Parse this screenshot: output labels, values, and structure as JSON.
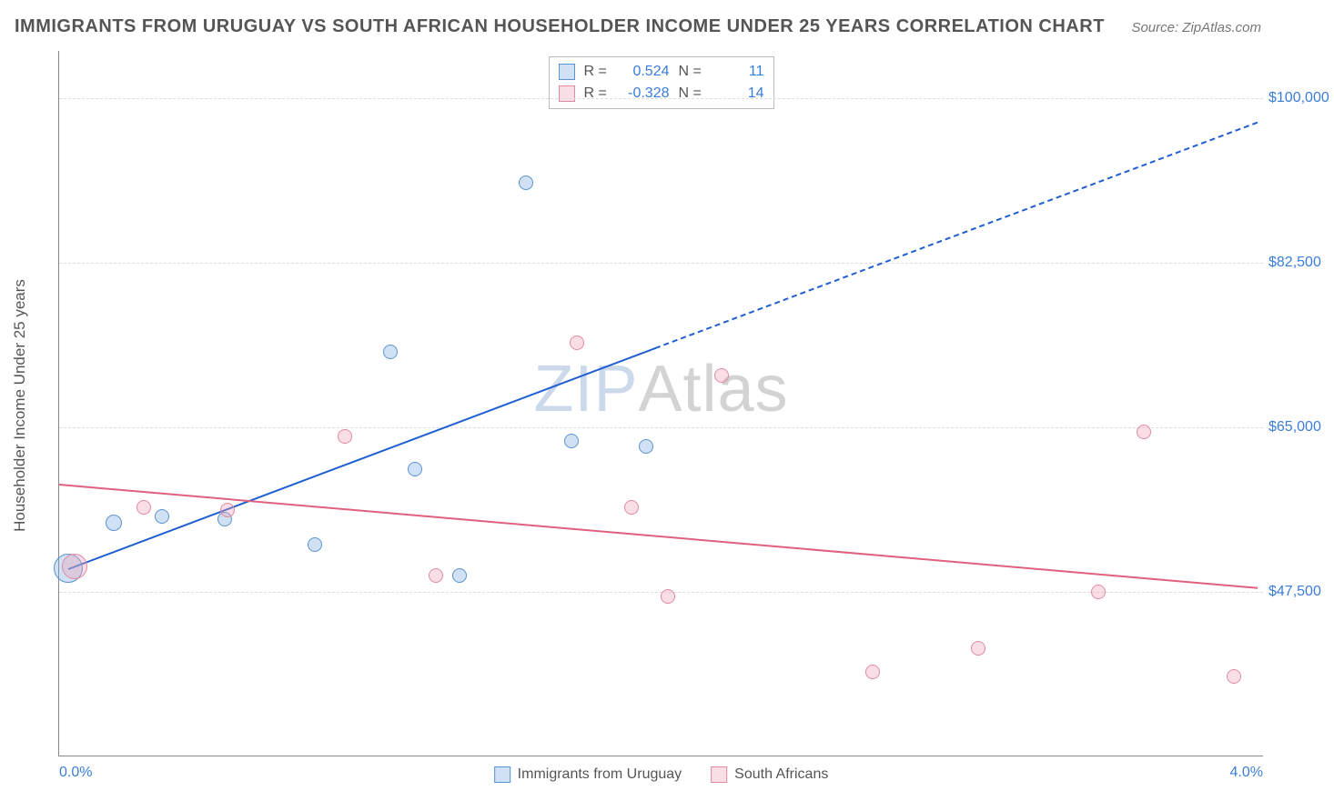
{
  "title": "IMMIGRANTS FROM URUGUAY VS SOUTH AFRICAN HOUSEHOLDER INCOME UNDER 25 YEARS CORRELATION CHART",
  "source_label": "Source: ZipAtlas.com",
  "y_axis_title": "Householder Income Under 25 years",
  "watermark": {
    "part1": "ZIP",
    "part2": "Atlas"
  },
  "chart": {
    "type": "scatter",
    "background_color": "#ffffff",
    "grid_color": "#dddddd",
    "axis_color": "#888888",
    "xlim": [
      0.0,
      4.0
    ],
    "ylim": [
      30000,
      105000
    ],
    "x_ticks": [
      {
        "value": 0.0,
        "label": "0.0%",
        "align": "left"
      },
      {
        "value": 4.0,
        "label": "4.0%",
        "align": "right"
      }
    ],
    "y_ticks": [
      {
        "value": 47500,
        "label": "$47,500"
      },
      {
        "value": 65000,
        "label": "$65,000"
      },
      {
        "value": 82500,
        "label": "$82,500"
      },
      {
        "value": 100000,
        "label": "$100,000"
      }
    ],
    "series": [
      {
        "name": "Immigrants from Uruguay",
        "fill_color": "rgba(120,170,225,0.35)",
        "stroke_color": "#5a93cf",
        "line_color": "#1f5fd0",
        "R": "0.524",
        "N": "11",
        "points": [
          {
            "x": 0.03,
            "y": 50000,
            "r": 16
          },
          {
            "x": 0.18,
            "y": 54800,
            "r": 9
          },
          {
            "x": 0.34,
            "y": 55500,
            "r": 8
          },
          {
            "x": 0.55,
            "y": 55200,
            "r": 8
          },
          {
            "x": 0.85,
            "y": 52500,
            "r": 8
          },
          {
            "x": 1.1,
            "y": 73000,
            "r": 8
          },
          {
            "x": 1.18,
            "y": 60500,
            "r": 8
          },
          {
            "x": 1.33,
            "y": 49200,
            "r": 8
          },
          {
            "x": 1.55,
            "y": 91000,
            "r": 8
          },
          {
            "x": 1.7,
            "y": 63500,
            "r": 8
          },
          {
            "x": 1.95,
            "y": 63000,
            "r": 8
          }
        ],
        "trend": {
          "solid": {
            "x1": 0.03,
            "y1": 50000,
            "x2": 1.98,
            "y2": 73500
          },
          "dashed": {
            "x1": 1.98,
            "y1": 73500,
            "x2": 3.98,
            "y2": 97500
          }
        }
      },
      {
        "name": "South Africans",
        "fill_color": "rgba(240,160,180,0.35)",
        "stroke_color": "#e08aa0",
        "line_color": "#e06080",
        "R": "-0.328",
        "N": "14",
        "points": [
          {
            "x": 0.05,
            "y": 50200,
            "r": 14
          },
          {
            "x": 0.28,
            "y": 56500,
            "r": 8
          },
          {
            "x": 0.56,
            "y": 56200,
            "r": 8
          },
          {
            "x": 0.95,
            "y": 64000,
            "r": 8
          },
          {
            "x": 1.25,
            "y": 49200,
            "r": 8
          },
          {
            "x": 1.72,
            "y": 74000,
            "r": 8
          },
          {
            "x": 1.9,
            "y": 56500,
            "r": 8
          },
          {
            "x": 2.02,
            "y": 47000,
            "r": 8
          },
          {
            "x": 2.2,
            "y": 70500,
            "r": 8
          },
          {
            "x": 2.7,
            "y": 39000,
            "r": 8
          },
          {
            "x": 3.05,
            "y": 41500,
            "r": 8
          },
          {
            "x": 3.45,
            "y": 47500,
            "r": 8
          },
          {
            "x": 3.6,
            "y": 64500,
            "r": 8
          },
          {
            "x": 3.9,
            "y": 38500,
            "r": 8
          }
        ],
        "trend": {
          "solid": {
            "x1": 0.0,
            "y1": 59000,
            "x2": 3.98,
            "y2": 48000
          }
        }
      }
    ]
  }
}
